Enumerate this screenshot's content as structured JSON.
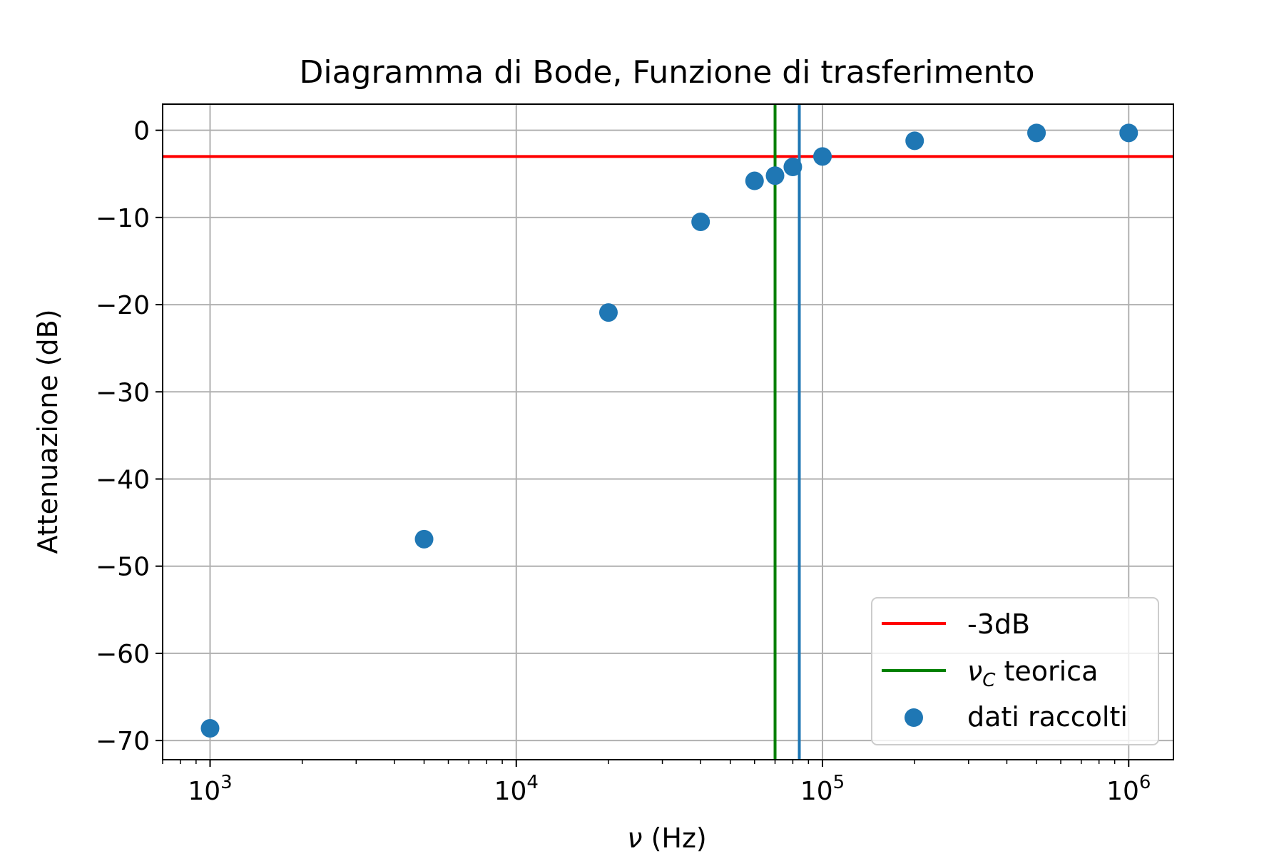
{
  "chart_data": {
    "type": "scatter",
    "title": "Diagramma di Bode, Funzione di trasferimento",
    "xlabel_symbol": "ν",
    "xlabel_unit": " (Hz)",
    "ylabel": "Attenuazione (dB)",
    "x_scale": "log",
    "xlim": [
      700,
      1400000
    ],
    "ylim": [
      -72.2,
      3
    ],
    "grid": true,
    "x_ticks": [
      {
        "value": 1000,
        "base": "10",
        "exp": "3"
      },
      {
        "value": 10000,
        "base": "10",
        "exp": "4"
      },
      {
        "value": 100000,
        "base": "10",
        "exp": "5"
      },
      {
        "value": 1000000,
        "base": "10",
        "exp": "6"
      }
    ],
    "y_ticks": [
      {
        "value": 0,
        "label": "0"
      },
      {
        "value": -10,
        "label": "−10"
      },
      {
        "value": -20,
        "label": "−20"
      },
      {
        "value": -30,
        "label": "−30"
      },
      {
        "value": -40,
        "label": "−40"
      },
      {
        "value": -50,
        "label": "−50"
      },
      {
        "value": -60,
        "label": "−60"
      },
      {
        "value": -70,
        "label": "−70"
      }
    ],
    "series": [
      {
        "name": "dati raccolti",
        "kind": "scatter",
        "color": "#1f77b4",
        "x": [
          1000,
          5000,
          20000,
          40000,
          60000,
          70000,
          80000,
          100000,
          200000,
          500000,
          1000000
        ],
        "y": [
          -68.6,
          -46.9,
          -20.9,
          -10.5,
          -5.8,
          -5.2,
          -4.2,
          -3.0,
          -1.2,
          -0.3,
          -0.3
        ]
      }
    ],
    "reference_lines": [
      {
        "name": "-3dB",
        "orientation": "horizontal",
        "value": -3,
        "color": "#ff0000",
        "in_legend": true
      },
      {
        "name_symbol": "ν",
        "name_sub": "C",
        "name_rest": " teorica",
        "orientation": "vertical",
        "value": 70000,
        "color": "#008000",
        "in_legend": true
      },
      {
        "orientation": "vertical",
        "value": 84000,
        "color": "#1f77b4",
        "in_legend": false
      }
    ],
    "legend": {
      "position": "lower-right",
      "entries": [
        {
          "label": "-3dB",
          "marker": "line",
          "color": "#ff0000"
        },
        {
          "label_symbol": "ν",
          "label_sub": "C",
          "label_rest": " teorica",
          "marker": "line",
          "color": "#008000"
        },
        {
          "label": "dati raccolti",
          "marker": "dot",
          "color": "#1f77b4"
        }
      ]
    },
    "colors": {
      "grid": "#b0b0b0",
      "axes": "#000000",
      "background": "#ffffff"
    }
  }
}
